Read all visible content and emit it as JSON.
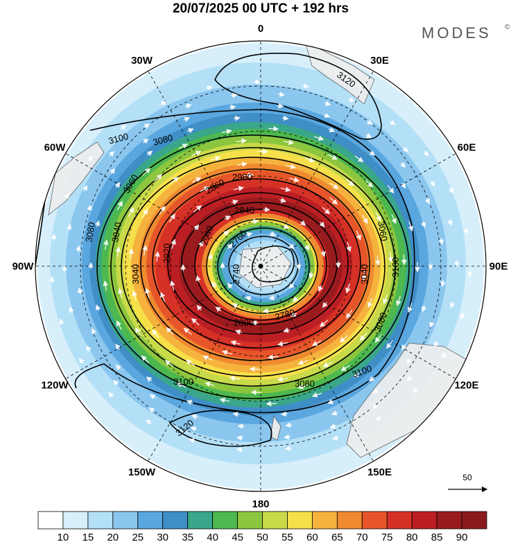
{
  "title": "20/07/2025  00 UTC  + 192 hrs",
  "brand": "MODES",
  "brand_mark": "©",
  "longitude_labels": [
    {
      "text": "0",
      "lon": 0
    },
    {
      "text": "30E",
      "lon": 30
    },
    {
      "text": "60E",
      "lon": 60
    },
    {
      "text": "90E",
      "lon": 90
    },
    {
      "text": "120E",
      "lon": 120
    },
    {
      "text": "150E",
      "lon": 150
    },
    {
      "text": "180",
      "lon": 180
    },
    {
      "text": "150W",
      "lon": -150
    },
    {
      "text": "120W",
      "lon": -120
    },
    {
      "text": "90W",
      "lon": -90
    },
    {
      "text": "60W",
      "lon": -60
    },
    {
      "text": "30W",
      "lon": -30
    }
  ],
  "wind_bands": [
    {
      "level": 15,
      "color": "#d6effb"
    },
    {
      "level": 20,
      "color": "#b4e0f7"
    },
    {
      "level": 25,
      "color": "#8ac6ee"
    },
    {
      "level": 30,
      "color": "#5aa6de"
    },
    {
      "level": 35,
      "color": "#3f8ec6"
    },
    {
      "level": 40,
      "color": "#3aa68a"
    },
    {
      "level": 45,
      "color": "#4cb84f"
    },
    {
      "level": 50,
      "color": "#8cc63f"
    },
    {
      "level": 55,
      "color": "#c8d94a"
    },
    {
      "level": 60,
      "color": "#f6e04a"
    },
    {
      "level": 65,
      "color": "#f5b33e"
    },
    {
      "level": 70,
      "color": "#ef8a30"
    },
    {
      "level": 75,
      "color": "#e7562a"
    },
    {
      "level": 80,
      "color": "#d63127"
    },
    {
      "level": 85,
      "color": "#bb1f24"
    },
    {
      "level": 90,
      "color": "#9a1b1e"
    }
  ],
  "height_contour_labels": [
    "3120",
    "3100",
    "3080",
    "3060",
    "3040",
    "2980",
    "2960",
    "2940",
    "2920",
    "2840",
    "2800",
    "2780",
    "2760",
    "2740"
  ],
  "colorbar": {
    "colors": [
      "#ffffff",
      "#d6effb",
      "#b4e0f7",
      "#8ac6ee",
      "#5aa6de",
      "#3f8ec6",
      "#3aa68a",
      "#4cb84f",
      "#8cc63f",
      "#c8d94a",
      "#f6e04a",
      "#f5b33e",
      "#ef8a30",
      "#e7562a",
      "#d63127",
      "#bb1f24",
      "#9a1b1e",
      "#8b1a1c"
    ],
    "labels": [
      "10",
      "15",
      "20",
      "25",
      "30",
      "35",
      "40",
      "45",
      "50",
      "55",
      "60",
      "65",
      "70",
      "75",
      "80",
      "85",
      "90"
    ]
  },
  "vector_reference": {
    "label": "50"
  }
}
